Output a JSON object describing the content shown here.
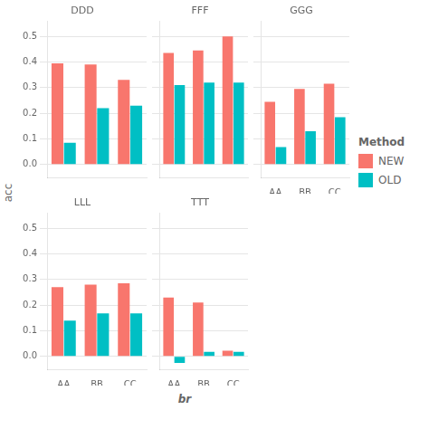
{
  "chart_data": [
    {
      "type": "bar",
      "title": "DDD",
      "categories": [
        "AA",
        "BB",
        "CC"
      ],
      "series": [
        {
          "name": "NEW",
          "color": "#F8766D",
          "values": [
            0.395,
            0.39,
            0.33
          ]
        },
        {
          "name": "OLD",
          "color": "#00BFC4",
          "values": [
            0.085,
            0.22,
            0.23
          ]
        }
      ],
      "ylim": [
        -0.05,
        0.56
      ],
      "yticks": [
        {
          "value": 0.0,
          "label": "0.0"
        },
        0.1,
        0.2,
        0.3,
        0.4,
        0.5
      ],
      "grid": true,
      "tick_labels": "y"
    },
    {
      "type": "bar",
      "title": "FFF",
      "categories": [
        "AA",
        "BB",
        "CC"
      ],
      "series": [
        {
          "name": "NEW",
          "color": "#F8766D",
          "values": [
            0.435,
            0.445,
            0.5
          ]
        },
        {
          "name": "OLD",
          "color": "#00BFC4",
          "values": [
            0.31,
            0.32,
            0.32
          ]
        }
      ],
      "ylim": [
        -0.05,
        0.56
      ],
      "yticks": [
        {
          "value": 0.0,
          "label": "0.0"
        },
        0.1,
        0.2,
        0.3,
        0.4,
        0.5
      ],
      "grid": true,
      "tick_labels": false
    },
    {
      "type": "bar",
      "title": "GGG",
      "categories": [
        "AA",
        "BB",
        "CC"
      ],
      "series": [
        {
          "name": "NEW",
          "color": "#F8766D",
          "values": [
            0.245,
            0.295,
            0.315
          ]
        },
        {
          "name": "OLD",
          "color": "#00BFC4",
          "values": [
            0.068,
            0.13,
            0.185
          ]
        }
      ],
      "ylim": [
        -0.05,
        0.56
      ],
      "yticks": [
        {
          "value": 0.0,
          "label": "0.0"
        },
        0.1,
        0.2,
        0.3,
        0.4,
        0.5
      ],
      "grid": true,
      "tick_labels": "x"
    },
    {
      "type": "bar",
      "title": "LLL",
      "categories": [
        "AA",
        "BB",
        "CC"
      ],
      "series": [
        {
          "name": "NEW",
          "color": "#F8766D",
          "values": [
            0.27,
            0.28,
            0.285
          ]
        },
        {
          "name": "OLD",
          "color": "#00BFC4",
          "values": [
            0.14,
            0.168,
            0.168
          ]
        }
      ],
      "ylim": [
        -0.05,
        0.56
      ],
      "yticks": [
        {
          "value": 0.0,
          "label": "0.0"
        },
        0.1,
        0.2,
        0.3,
        0.4,
        0.5
      ],
      "grid": true
    },
    {
      "type": "bar",
      "title": "TTT",
      "categories": [
        "AA",
        "BB",
        "CC"
      ],
      "series": [
        {
          "name": "NEW",
          "color": "#F8766D",
          "values": [
            0.23,
            0.21,
            0.022
          ]
        },
        {
          "name": "OLD",
          "color": "#00BFC4",
          "values": [
            -0.025,
            0.018,
            0.018
          ]
        }
      ],
      "ylim": [
        -0.05,
        0.56
      ],
      "yticks": [
        {
          "value": 0.0,
          "label": "0.0"
        },
        0.1,
        0.2,
        0.3,
        0.4,
        0.5
      ],
      "grid": true,
      "tick_labels": "x"
    }
  ],
  "xlabel": "br",
  "ylabel": "acc",
  "legend_title": "Method",
  "legend": "right"
}
